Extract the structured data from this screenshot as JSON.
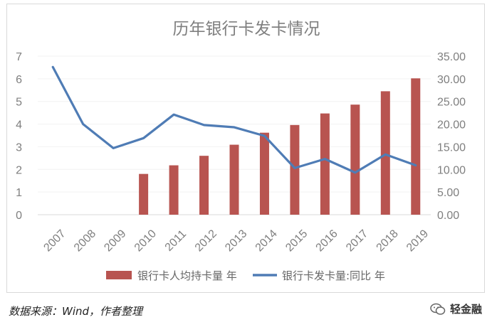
{
  "chart_data": {
    "type": "bar+line",
    "title": "历年银行卡发卡情况",
    "categories": [
      "2007",
      "2008",
      "2009",
      "2010",
      "2011",
      "2012",
      "2013",
      "2014",
      "2015",
      "2016",
      "2017",
      "2018",
      "2019"
    ],
    "series": [
      {
        "name": "银行卡人均持卡量 年",
        "type": "bar",
        "axis": "left",
        "color": "#b85450",
        "values": [
          null,
          null,
          null,
          1.8,
          2.18,
          2.6,
          3.09,
          3.62,
          3.96,
          4.47,
          4.86,
          5.45,
          6.02
        ]
      },
      {
        "name": "银行卡发卡量:同比 年",
        "type": "line",
        "axis": "right",
        "color": "#4f7cb5",
        "values": [
          32.6,
          20.0,
          14.7,
          16.9,
          22.1,
          19.8,
          19.3,
          17.4,
          10.3,
          12.3,
          9.3,
          13.3,
          10.9
        ]
      }
    ],
    "y_left": {
      "min": 0,
      "max": 7,
      "ticks": [
        "0",
        "1",
        "2",
        "3",
        "4",
        "5",
        "6",
        "7"
      ]
    },
    "y_right": {
      "min": 0,
      "max": 35,
      "ticks": [
        "0.00",
        "5.00",
        "10.00",
        "15.00",
        "20.00",
        "25.00",
        "30.00",
        "35.00"
      ]
    },
    "legend_position": "bottom",
    "grid": false
  },
  "footer": {
    "source": "数据来源：Wind，作者整理",
    "brand": "轻金融"
  }
}
